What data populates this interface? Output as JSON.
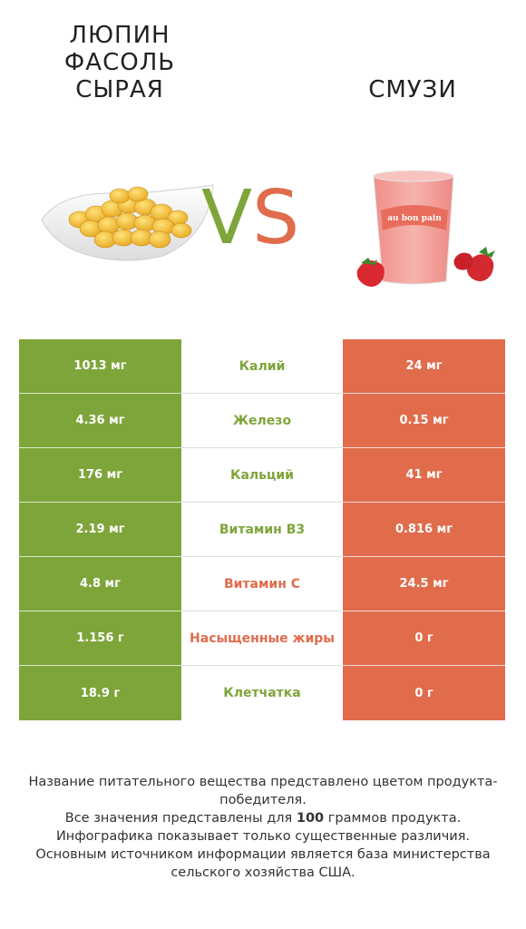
{
  "colors": {
    "green": "#7ea53a",
    "red": "#e06c4c"
  },
  "left": {
    "title_lines": [
      "ЛЮПИН",
      "ФАСОЛЬ",
      "СЫРАЯ"
    ],
    "image_icon": "lupin-beans-bowl-icon"
  },
  "right": {
    "title": "СМУЗИ",
    "image_icon": "smoothie-cup-icon",
    "cup_text": "au bon pain"
  },
  "vs": {
    "v": "V",
    "s": "S"
  },
  "rows": [
    {
      "left": "1013 мг",
      "name": "Калий",
      "right": "24 мг",
      "winner": "left"
    },
    {
      "left": "4.36 мг",
      "name": "Железо",
      "right": "0.15 мг",
      "winner": "left"
    },
    {
      "left": "176 мг",
      "name": "Кальций",
      "right": "41 мг",
      "winner": "left"
    },
    {
      "left": "2.19 мг",
      "name": "Витамин B3",
      "right": "0.816 мг",
      "winner": "left"
    },
    {
      "left": "4.8 мг",
      "name": "Витамин C",
      "right": "24.5 мг",
      "winner": "right"
    },
    {
      "left": "1.156 г",
      "name": "Насыщенные жиры",
      "right": "0 г",
      "winner": "right"
    },
    {
      "left": "18.9 г",
      "name": "Клетчатка",
      "right": "0 г",
      "winner": "left"
    }
  ],
  "footer": {
    "line1": "Название питательного вещества представлено цветом продукта-победителя.",
    "line2_pre": "Все значения представлены для ",
    "line2_bold": "100",
    "line2_post": " граммов продукта.",
    "line3": "Инфографика показывает только существенные различия.",
    "line4": "Основным источником информации является база министерства сельского хозяйства США."
  }
}
